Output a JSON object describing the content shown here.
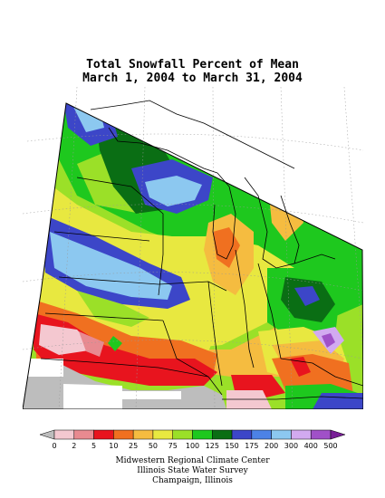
{
  "title": {
    "line1": "Total Snowfall Percent of Mean",
    "line2": "March 1, 2004 to March 31, 2004"
  },
  "colors": {
    "lt0": "#bdbdbd",
    "0_2": "#f4c8d0",
    "2_5": "#e88a90",
    "5_10": "#e8141e",
    "10_25": "#f07020",
    "25_50": "#f5bc40",
    "50_75": "#e8e840",
    "75_100": "#9be028",
    "100_125": "#1ec81e",
    "125_150": "#0a6e14",
    "150_175": "#3c46c8",
    "175_200": "#4c82e6",
    "200_300": "#8cc8f0",
    "300_400": "#d2aaf0",
    "400_500": "#a050c8",
    "gt500": "#781e96",
    "nodata": "#ffffff"
  },
  "legend": {
    "ticks": [
      "0",
      "2",
      "5",
      "10",
      "25",
      "50",
      "75",
      "100",
      "125",
      "150",
      "175",
      "200",
      "300",
      "400",
      "500"
    ],
    "bins": [
      "lt0",
      "0_2",
      "2_5",
      "5_10",
      "10_25",
      "25_50",
      "50_75",
      "75_100",
      "100_125",
      "125_150",
      "150_175",
      "175_200",
      "200_300",
      "300_400",
      "400_500",
      "gt500"
    ]
  },
  "credits": {
    "line1": "Midwestern Regional Climate Center",
    "line2": "Illinois State Water Survey",
    "line3": "Champaign, Illinois"
  }
}
